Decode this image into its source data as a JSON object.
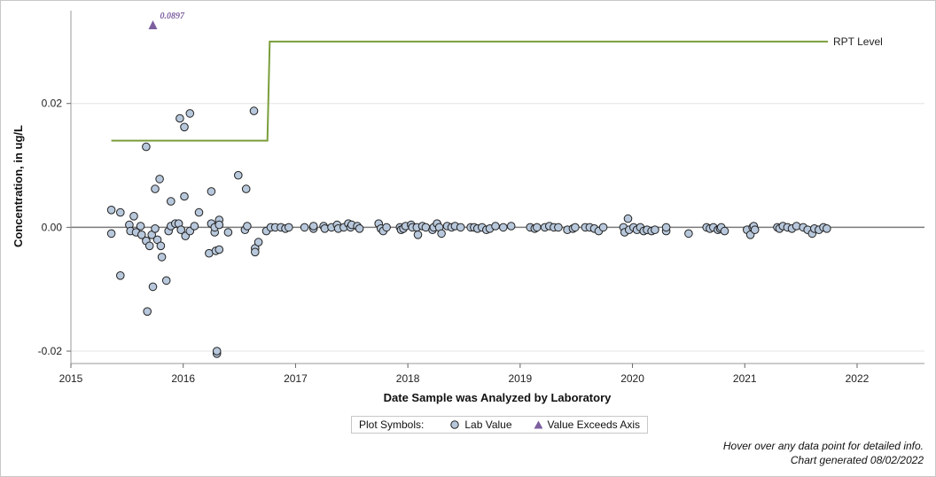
{
  "chart_data": {
    "type": "scatter",
    "xlabel": "Date Sample was Analyzed by Laboratory",
    "ylabel": "Concentration, in ug/L",
    "xlim": [
      2015.0,
      2022.6
    ],
    "ylim": [
      -0.022,
      0.035
    ],
    "x_ticks": [
      2015,
      2016,
      2017,
      2018,
      2019,
      2020,
      2021,
      2022
    ],
    "x_tick_labels": [
      "2015",
      "2016",
      "2017",
      "2018",
      "2019",
      "2020",
      "2021",
      "2022"
    ],
    "y_ticks": [
      -0.02,
      0.0,
      0.02
    ],
    "y_tick_labels": [
      "-0.02",
      "0.00",
      "0.02"
    ],
    "grid": "horizontal",
    "zero_line": true,
    "rpt_level": {
      "name": "RPT Level",
      "points": [
        [
          2015.36,
          0.014
        ],
        [
          2016.75,
          0.014
        ],
        [
          2016.77,
          0.03
        ],
        [
          2021.74,
          0.03
        ]
      ]
    },
    "exceed_point": {
      "x": 2015.73,
      "label": "0.0897"
    },
    "series": [
      {
        "name": "Lab Value",
        "points": [
          [
            2015.36,
            0.0028
          ],
          [
            2015.36,
            -0.001
          ],
          [
            2015.44,
            0.0024
          ],
          [
            2015.44,
            -0.0078
          ],
          [
            2015.52,
            0.0004
          ],
          [
            2015.53,
            -0.0006
          ],
          [
            2015.56,
            0.0018
          ],
          [
            2015.58,
            -0.0008
          ],
          [
            2015.62,
            0.0002
          ],
          [
            2015.63,
            -0.0012
          ],
          [
            2015.67,
            -0.0022
          ],
          [
            2015.67,
            0.013
          ],
          [
            2015.68,
            -0.0136
          ],
          [
            2015.7,
            -0.003
          ],
          [
            2015.72,
            -0.0012
          ],
          [
            2015.73,
            -0.0096
          ],
          [
            2015.75,
            0.0062
          ],
          [
            2015.75,
            -0.0002
          ],
          [
            2015.77,
            -0.002
          ],
          [
            2015.79,
            0.0078
          ],
          [
            2015.8,
            -0.003
          ],
          [
            2015.81,
            -0.0048
          ],
          [
            2015.85,
            -0.0086
          ],
          [
            2015.87,
            -0.0006
          ],
          [
            2015.89,
            0.0042
          ],
          [
            2015.89,
            0.0002
          ],
          [
            2015.93,
            0.0006
          ],
          [
            2015.96,
            0.0006
          ],
          [
            2015.97,
            0.0176
          ],
          [
            2015.98,
            -0.0004
          ],
          [
            2016.01,
            0.0162
          ],
          [
            2016.01,
            0.005
          ],
          [
            2016.02,
            -0.0014
          ],
          [
            2016.06,
            0.0184
          ],
          [
            2016.06,
            -0.0006
          ],
          [
            2016.1,
            0.0002
          ],
          [
            2016.14,
            0.0024
          ],
          [
            2016.23,
            -0.0042
          ],
          [
            2016.25,
            0.0006
          ],
          [
            2016.25,
            0.0058
          ],
          [
            2016.28,
            -0.0008
          ],
          [
            2016.28,
            0.0
          ],
          [
            2016.29,
            -0.0038
          ],
          [
            2016.3,
            -0.0204
          ],
          [
            2016.3,
            -0.02
          ],
          [
            2016.32,
            0.0012
          ],
          [
            2016.32,
            -0.0036
          ],
          [
            2016.32,
            0.0004
          ],
          [
            2016.4,
            -0.0008
          ],
          [
            2016.49,
            0.0084
          ],
          [
            2016.55,
            -0.0004
          ],
          [
            2016.56,
            0.0062
          ],
          [
            2016.57,
            0.0002
          ],
          [
            2016.63,
            0.0188
          ],
          [
            2016.64,
            -0.0034
          ],
          [
            2016.64,
            -0.004
          ],
          [
            2016.67,
            -0.0024
          ],
          [
            2016.74,
            -0.0006
          ],
          [
            2016.78,
            0.0
          ],
          [
            2016.82,
            0.0
          ],
          [
            2016.87,
            0.0
          ],
          [
            2016.91,
            -0.0002
          ],
          [
            2016.94,
            0.0
          ],
          [
            2017.08,
            0.0
          ],
          [
            2017.16,
            -0.0002
          ],
          [
            2017.16,
            0.0002
          ],
          [
            2017.25,
            0.0002
          ],
          [
            2017.26,
            -0.0002
          ],
          [
            2017.32,
            0.0
          ],
          [
            2017.37,
            0.0004
          ],
          [
            2017.38,
            -0.0002
          ],
          [
            2017.43,
            0.0
          ],
          [
            2017.47,
            0.0006
          ],
          [
            2017.49,
            0.0
          ],
          [
            2017.5,
            0.0004
          ],
          [
            2017.55,
            0.0002
          ],
          [
            2017.57,
            -0.0002
          ],
          [
            2017.74,
            0.0006
          ],
          [
            2017.76,
            -0.0002
          ],
          [
            2017.78,
            -0.0006
          ],
          [
            2017.81,
            0.0
          ],
          [
            2017.93,
            0.0
          ],
          [
            2017.94,
            -0.0004
          ],
          [
            2017.96,
            -0.0002
          ],
          [
            2017.98,
            0.0002
          ],
          [
            2018.03,
            0.0004
          ],
          [
            2018.04,
            0.0
          ],
          [
            2018.08,
            0.0
          ],
          [
            2018.09,
            -0.0012
          ],
          [
            2018.13,
            0.0002
          ],
          [
            2018.16,
            0.0
          ],
          [
            2018.22,
            -0.0004
          ],
          [
            2018.23,
            0.0
          ],
          [
            2018.26,
            0.0006
          ],
          [
            2018.28,
            0.0
          ],
          [
            2018.3,
            -0.001
          ],
          [
            2018.35,
            0.0002
          ],
          [
            2018.39,
            0.0
          ],
          [
            2018.42,
            0.0002
          ],
          [
            2018.47,
            0.0
          ],
          [
            2018.56,
            0.0
          ],
          [
            2018.59,
            0.0
          ],
          [
            2018.62,
            -0.0002
          ],
          [
            2018.66,
            0.0
          ],
          [
            2018.7,
            -0.0004
          ],
          [
            2018.73,
            -0.0002
          ],
          [
            2018.78,
            0.0002
          ],
          [
            2018.85,
            0.0
          ],
          [
            2018.92,
            0.0002
          ],
          [
            2019.09,
            0.0
          ],
          [
            2019.13,
            -0.0002
          ],
          [
            2019.15,
            0.0
          ],
          [
            2019.22,
            0.0
          ],
          [
            2019.26,
            0.0002
          ],
          [
            2019.3,
            0.0
          ],
          [
            2019.34,
            0.0
          ],
          [
            2019.42,
            -0.0004
          ],
          [
            2019.47,
            -0.0002
          ],
          [
            2019.49,
            0.0
          ],
          [
            2019.58,
            0.0
          ],
          [
            2019.62,
            0.0
          ],
          [
            2019.66,
            -0.0002
          ],
          [
            2019.7,
            -0.0006
          ],
          [
            2019.74,
            0.0
          ],
          [
            2019.92,
            0.0
          ],
          [
            2019.93,
            -0.0008
          ],
          [
            2019.96,
            0.0014
          ],
          [
            2019.97,
            -0.0004
          ],
          [
            2020.01,
            0.0
          ],
          [
            2020.04,
            -0.0004
          ],
          [
            2020.07,
            0.0
          ],
          [
            2020.1,
            -0.0006
          ],
          [
            2020.13,
            -0.0004
          ],
          [
            2020.17,
            -0.0006
          ],
          [
            2020.2,
            -0.0004
          ],
          [
            2020.3,
            -0.0006
          ],
          [
            2020.3,
            0.0
          ],
          [
            2020.5,
            -0.001
          ],
          [
            2020.66,
            0.0
          ],
          [
            2020.69,
            -0.0002
          ],
          [
            2020.72,
            0.0
          ],
          [
            2020.76,
            -0.0004
          ],
          [
            2020.78,
            -0.0002
          ],
          [
            2020.79,
            0.0
          ],
          [
            2020.82,
            -0.0006
          ],
          [
            2021.02,
            -0.0004
          ],
          [
            2021.05,
            -0.0012
          ],
          [
            2021.07,
            0.0
          ],
          [
            2021.08,
            0.0002
          ],
          [
            2021.09,
            -0.0004
          ],
          [
            2021.29,
            0.0
          ],
          [
            2021.31,
            -0.0002
          ],
          [
            2021.34,
            0.0002
          ],
          [
            2021.38,
            0.0
          ],
          [
            2021.42,
            -0.0002
          ],
          [
            2021.46,
            0.0002
          ],
          [
            2021.52,
            0.0
          ],
          [
            2021.56,
            -0.0004
          ],
          [
            2021.6,
            -0.001
          ],
          [
            2021.62,
            -0.0002
          ],
          [
            2021.66,
            -0.0004
          ],
          [
            2021.7,
            0.0
          ],
          [
            2021.73,
            -0.0002
          ]
        ]
      }
    ]
  },
  "legend": {
    "label": "Plot Symbols:",
    "lab_value": "Lab Value",
    "exceeds": "Value Exceeds Axis"
  },
  "notes": {
    "hover": "Hover over any data point for detailed info.",
    "generated": "Chart generated 08/02/2022"
  },
  "colors": {
    "marker_fill": "#b8c8dc",
    "marker_stroke": "#222222",
    "rpt_line": "#7a9e3b",
    "exceed": "#7d5fa0",
    "grid": "#e4e4e4",
    "zero": "#7a7a7a"
  }
}
